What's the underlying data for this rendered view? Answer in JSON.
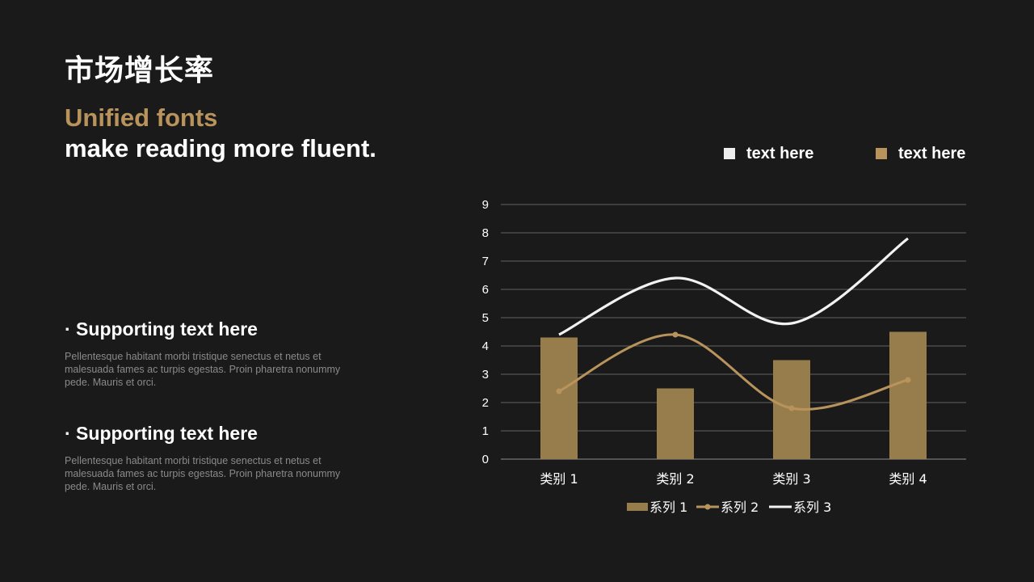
{
  "title": "市场增长率",
  "subtitle_accent": "Unified fonts",
  "subtitle_main": "make reading more fluent.",
  "sections": [
    {
      "heading": "· Supporting text here",
      "body": "Pellentesque  habitant morbi tristique senectus et netus et malesuada fames ac turpis egestas. Proin pharetra nonummy pede. Mauris et orci."
    },
    {
      "heading": "· Supporting text here",
      "body": "Pellentesque  habitant morbi tristique senectus et netus et malesuada fames ac turpis egestas. Proin pharetra nonummy pede. Mauris et orci."
    }
  ],
  "top_legend": [
    {
      "label": "text here",
      "color": "#eeeeee"
    },
    {
      "label": "text here",
      "color": "#b8945c"
    }
  ],
  "colors": {
    "bar": "#977d4b",
    "line_gold": "#b8945c",
    "line_white": "#f2f2f2",
    "grid": "#555555",
    "axis_text": "#ffffff"
  },
  "chart_data": {
    "type": "bar",
    "categories": [
      "类别 1",
      "类别 2",
      "类别 3",
      "类别 4"
    ],
    "series": [
      {
        "name": "系列 1",
        "type": "bar",
        "values": [
          4.3,
          2.5,
          3.5,
          4.5
        ]
      },
      {
        "name": "系列 2",
        "type": "line",
        "values": [
          2.4,
          4.4,
          1.8,
          2.8
        ]
      },
      {
        "name": "系列 3",
        "type": "line",
        "values": [
          4.4,
          6.4,
          4.8,
          7.8
        ]
      }
    ],
    "yticks": [
      "0",
      "1",
      "2",
      "3",
      "4",
      "5",
      "6",
      "7",
      "8",
      "9"
    ],
    "ylim": [
      0,
      9
    ],
    "grid": true,
    "legend": "bottom"
  }
}
